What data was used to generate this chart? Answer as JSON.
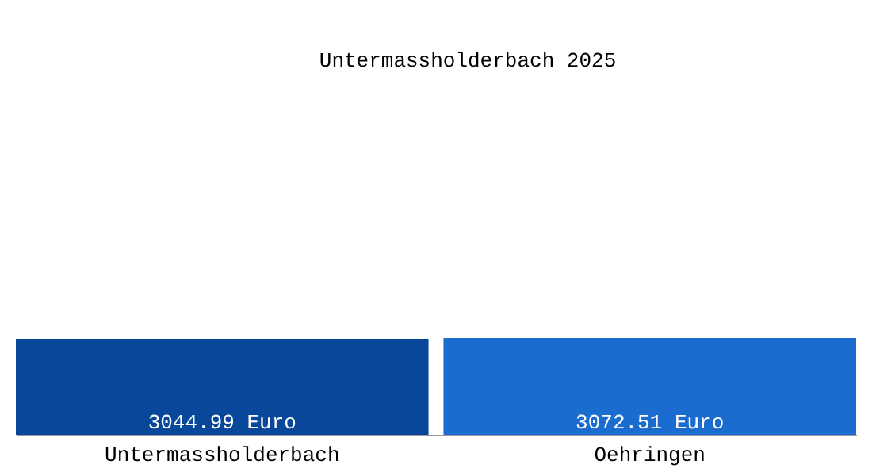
{
  "chart_data": {
    "type": "bar",
    "title": "Untermassholderbach 2025",
    "categories": [
      "Untermassholderbach",
      "Oehringen"
    ],
    "values": [
      3044.99,
      3072.51
    ],
    "colors": [
      "#08479a",
      "#1b6ccf"
    ],
    "value_labels": [
      "3044.99 Euro",
      "3072.51 Euro"
    ]
  }
}
